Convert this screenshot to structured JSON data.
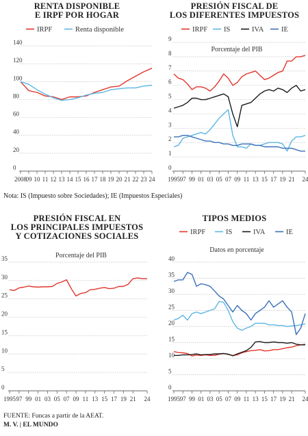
{
  "colors": {
    "red": "#e0352b",
    "lightblue": "#5bb6e6",
    "black": "#1a1a1a",
    "blue": "#3a6fb8",
    "grid": "#bfbfbf"
  },
  "note": "Nota: IS (Impuesto sobre Sociedades); IE (Impuestos Especiales)",
  "source": "FUENTE: Funcas a partir de la AEAT.",
  "credit": "M. V. | EL MUNDO",
  "chart_data": [
    {
      "type": "line",
      "title": "RENTA DISPONIBLE\nE IRPF POR HOGAR",
      "subtitle": "",
      "x": [
        2008,
        2009,
        2010,
        2011,
        2012,
        2013,
        2014,
        2015,
        2016,
        2017,
        2018,
        2019,
        2020,
        2021,
        2022,
        2023,
        2024
      ],
      "xticks": [
        "2008",
        "09",
        "10",
        "11",
        "12",
        "13",
        "14",
        "15",
        "16",
        "17",
        "18",
        "19",
        "20",
        "21",
        "22",
        "23",
        "24"
      ],
      "ylim": [
        0,
        140
      ],
      "yticks": [
        0,
        20,
        40,
        60,
        80,
        100,
        120,
        140
      ],
      "legend": "top",
      "series": [
        {
          "name": "IRPF",
          "color": "red",
          "values": [
            100,
            90,
            88,
            84,
            83,
            80,
            83,
            83,
            84,
            88,
            91,
            94,
            95,
            101,
            106,
            111,
            115
          ]
        },
        {
          "name": "Renta disponible",
          "color": "lightblue",
          "values": [
            100,
            97,
            91,
            86,
            82,
            79,
            80,
            82,
            85,
            87,
            88,
            91,
            92,
            93,
            93,
            95,
            96
          ]
        }
      ]
    },
    {
      "type": "line",
      "title": "PRESIÓN FISCAL DE\nLOS DIFERENTES IMPUESTOS",
      "subtitle": "Porcentaje del PIB",
      "x": [
        1995,
        1996,
        1997,
        1998,
        1999,
        2000,
        2001,
        2002,
        2003,
        2004,
        2005,
        2006,
        2007,
        2008,
        2009,
        2010,
        2011,
        2012,
        2013,
        2014,
        2015,
        2016,
        2017,
        2018,
        2019,
        2020,
        2021,
        2022,
        2023,
        2024
      ],
      "xticks": [
        "1995",
        "97",
        "99",
        "01",
        "03",
        "05",
        "07",
        "09",
        "11",
        "13",
        "15",
        "17",
        "19",
        "21",
        "24"
      ],
      "xtick_years": [
        1995,
        1997,
        1999,
        2001,
        2003,
        2005,
        2007,
        2009,
        2011,
        2013,
        2015,
        2017,
        2019,
        2021,
        2024
      ],
      "ylim": [
        0,
        9
      ],
      "yticks": [
        0,
        1,
        2,
        3,
        4,
        5,
        6,
        7,
        8,
        9
      ],
      "legend": "top",
      "series": [
        {
          "name": "IRPF",
          "color": "red",
          "values": [
            6.8,
            6.5,
            6.4,
            6.1,
            5.7,
            5.9,
            5.9,
            5.8,
            5.6,
            5.9,
            6.3,
            6.8,
            6.5,
            6.0,
            6.2,
            6.6,
            6.8,
            6.9,
            7.0,
            6.7,
            6.4,
            6.5,
            6.7,
            6.9,
            7.0,
            7.7,
            7.7,
            8.0,
            8.0,
            8.1
          ]
        },
        {
          "name": "IS",
          "color": "lightblue",
          "values": [
            1.7,
            1.8,
            2.3,
            2.4,
            2.5,
            2.6,
            2.7,
            2.6,
            2.9,
            3.3,
            3.7,
            4.0,
            4.3,
            2.5,
            1.7,
            1.7,
            1.6,
            1.9,
            1.8,
            1.8,
            1.9,
            2.0,
            2.0,
            2.0,
            1.9,
            1.4,
            2.1,
            2.4,
            2.4,
            2.5
          ]
        },
        {
          "name": "IVA",
          "color": "black",
          "values": [
            4.4,
            4.5,
            4.6,
            4.8,
            5.1,
            5.1,
            5.0,
            5.0,
            5.1,
            5.2,
            5.3,
            5.4,
            5.2,
            4.0,
            3.1,
            4.6,
            4.7,
            4.8,
            5.1,
            5.4,
            5.6,
            5.7,
            5.6,
            5.8,
            5.7,
            5.5,
            5.8,
            6.0,
            5.6,
            5.7
          ]
        },
        {
          "name": "IE",
          "color": "blue",
          "values": [
            2.4,
            2.4,
            2.5,
            2.5,
            2.4,
            2.3,
            2.2,
            2.1,
            2.1,
            2.0,
            2.0,
            1.9,
            1.9,
            1.8,
            1.8,
            1.9,
            1.9,
            1.9,
            1.8,
            1.8,
            1.7,
            1.7,
            1.7,
            1.7,
            1.6,
            1.6,
            1.6,
            1.5,
            1.4,
            1.4
          ]
        }
      ]
    },
    {
      "type": "line",
      "title": "PRESIÓN FISCAL EN\nLOS PRINCIPALES IMPUESTOS\nY COTIZACIONES SOCIALES",
      "subtitle": "Porcentaje del PIB",
      "x": [
        1995,
        1996,
        1997,
        1998,
        1999,
        2000,
        2001,
        2002,
        2003,
        2004,
        2005,
        2006,
        2007,
        2008,
        2009,
        2010,
        2011,
        2012,
        2013,
        2014,
        2015,
        2016,
        2017,
        2018,
        2019,
        2020,
        2021,
        2022,
        2023,
        2024
      ],
      "xticks": [
        "1995",
        "97",
        "99",
        "01",
        "03",
        "05",
        "07",
        "09",
        "11",
        "13",
        "15",
        "17",
        "19",
        "21",
        "24"
      ],
      "xtick_years": [
        1995,
        1997,
        1999,
        2001,
        2003,
        2005,
        2007,
        2009,
        2011,
        2013,
        2015,
        2017,
        2019,
        2021,
        2024
      ],
      "ylim": [
        0,
        35
      ],
      "yticks": [
        0,
        5,
        10,
        15,
        20,
        25,
        30,
        35
      ],
      "legend": "none",
      "series": [
        {
          "name": "",
          "color": "red",
          "values": [
            27.5,
            27.3,
            28.0,
            28.2,
            28.5,
            28.3,
            28.2,
            28.3,
            28.3,
            28.4,
            29.2,
            29.6,
            30.2,
            27.8,
            25.8,
            26.5,
            26.7,
            27.5,
            27.6,
            27.9,
            28.1,
            27.8,
            27.9,
            28.4,
            28.4,
            29.0,
            30.5,
            30.7,
            30.5,
            30.5
          ]
        }
      ]
    },
    {
      "type": "line",
      "title": "TIPOS MEDIOS",
      "subtitle": "Datos en porcentaje",
      "x": [
        1995,
        1996,
        1997,
        1998,
        1999,
        2000,
        2001,
        2002,
        2003,
        2004,
        2005,
        2006,
        2007,
        2008,
        2009,
        2010,
        2011,
        2012,
        2013,
        2014,
        2015,
        2016,
        2017,
        2018,
        2019,
        2020,
        2021,
        2022,
        2023,
        2024
      ],
      "xticks": [
        "1995",
        "97",
        "99",
        "01",
        "03",
        "05",
        "07",
        "09",
        "11",
        "13",
        "15",
        "17",
        "19",
        "21",
        "24"
      ],
      "xtick_years": [
        1995,
        1997,
        1999,
        2001,
        2003,
        2005,
        2007,
        2009,
        2011,
        2013,
        2015,
        2017,
        2019,
        2021,
        2024
      ],
      "ylim": [
        0,
        40
      ],
      "yticks": [
        0,
        5,
        10,
        15,
        20,
        25,
        30,
        35,
        40
      ],
      "legend": "top",
      "series": [
        {
          "name": "IRPF",
          "color": "red",
          "values": [
            12.2,
            11.9,
            11.8,
            11.6,
            10.8,
            11.1,
            11.0,
            11.2,
            11.0,
            11.0,
            11.4,
            11.6,
            11.3,
            11.0,
            11.2,
            11.8,
            12.2,
            12.5,
            12.6,
            12.8,
            12.4,
            12.5,
            12.8,
            12.8,
            13.1,
            13.4,
            13.6,
            14.0,
            14.3,
            14.5
          ]
        },
        {
          "name": "IS",
          "color": "lightblue",
          "values": [
            22.0,
            22.5,
            23.5,
            22.0,
            24.0,
            24.5,
            24.0,
            24.5,
            25.0,
            25.5,
            27.8,
            27.5,
            25.0,
            21.5,
            19.5,
            18.8,
            19.5,
            20.0,
            21.0,
            21.0,
            21.0,
            20.5,
            20.5,
            20.3,
            20.3,
            20.0,
            20.2,
            20.3,
            20.5,
            20.8
          ]
        },
        {
          "name": "IVA",
          "color": "black",
          "values": [
            11.0,
            11.0,
            11.2,
            11.2,
            11.3,
            11.5,
            11.2,
            11.3,
            11.3,
            11.5,
            11.5,
            11.6,
            11.4,
            10.9,
            11.5,
            12.0,
            12.5,
            13.5,
            15.2,
            15.3,
            15.0,
            15.0,
            15.2,
            15.0,
            15.0,
            14.8,
            15.0,
            14.5,
            14.3,
            14.3
          ]
        },
        {
          "name": "IE",
          "color": "blue",
          "values": [
            34.0,
            34.5,
            34.5,
            36.8,
            36.2,
            32.5,
            33.3,
            33.0,
            32.5,
            31.0,
            29.5,
            28.5,
            26.5,
            24.5,
            26.5,
            25.0,
            24.0,
            22.0,
            24.0,
            25.0,
            26.0,
            28.0,
            26.0,
            27.0,
            28.0,
            26.0,
            24.5,
            17.5,
            19.5,
            24.0
          ]
        }
      ]
    }
  ]
}
